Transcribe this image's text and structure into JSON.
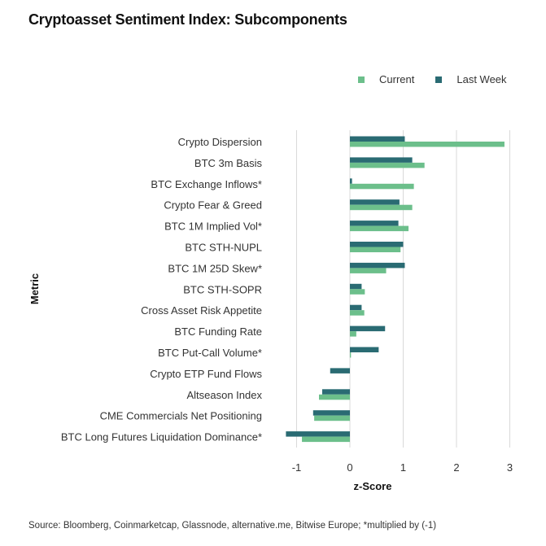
{
  "title": "Cryptoasset Sentiment Index: Subcomponents",
  "source": "Source: Bloomberg, Coinmarketcap, Glassnode, alternative.me, Bitwise Europe; *multiplied by (-1)",
  "colors": {
    "current": "#6cbf8b",
    "last_week": "#2a6b73",
    "grid": "#d9d9d9",
    "axis_text": "#333333"
  },
  "chart_data": {
    "type": "bar",
    "orientation": "horizontal",
    "title": "Cryptoasset Sentiment Index: Subcomponents",
    "xlabel": "z-Score",
    "ylabel": "Metric",
    "xlim": [
      -1.2,
      3.05
    ],
    "xticks": [
      -1,
      0,
      1,
      2,
      3
    ],
    "grid": "vertical",
    "legend_position": "top-right",
    "categories": [
      "Crypto Dispersion",
      "BTC 3m Basis",
      "BTC Exchange Inflows*",
      "Crypto Fear & Greed",
      "BTC 1M Implied Vol*",
      "BTC STH-NUPL",
      "BTC 1M 25D Skew*",
      "BTC STH-SOPR",
      "Cross Asset Risk Appetite",
      "BTC Funding Rate",
      "BTC Put-Call Volume*",
      "Crypto ETP Fund Flows",
      "Altseason Index",
      "CME Commercials Net Positioning",
      "BTC Long Futures Liquidation Dominance*"
    ],
    "series": [
      {
        "name": "Current",
        "values": [
          2.9,
          1.4,
          1.2,
          1.17,
          1.1,
          0.95,
          0.68,
          0.28,
          0.27,
          0.12,
          0.02,
          0.0,
          -0.58,
          -0.67,
          -0.9
        ]
      },
      {
        "name": "Last Week",
        "values": [
          1.03,
          1.17,
          0.04,
          0.93,
          0.91,
          1.0,
          1.03,
          0.22,
          0.22,
          0.66,
          0.54,
          -0.37,
          -0.52,
          -0.69,
          -1.2
        ]
      }
    ]
  }
}
